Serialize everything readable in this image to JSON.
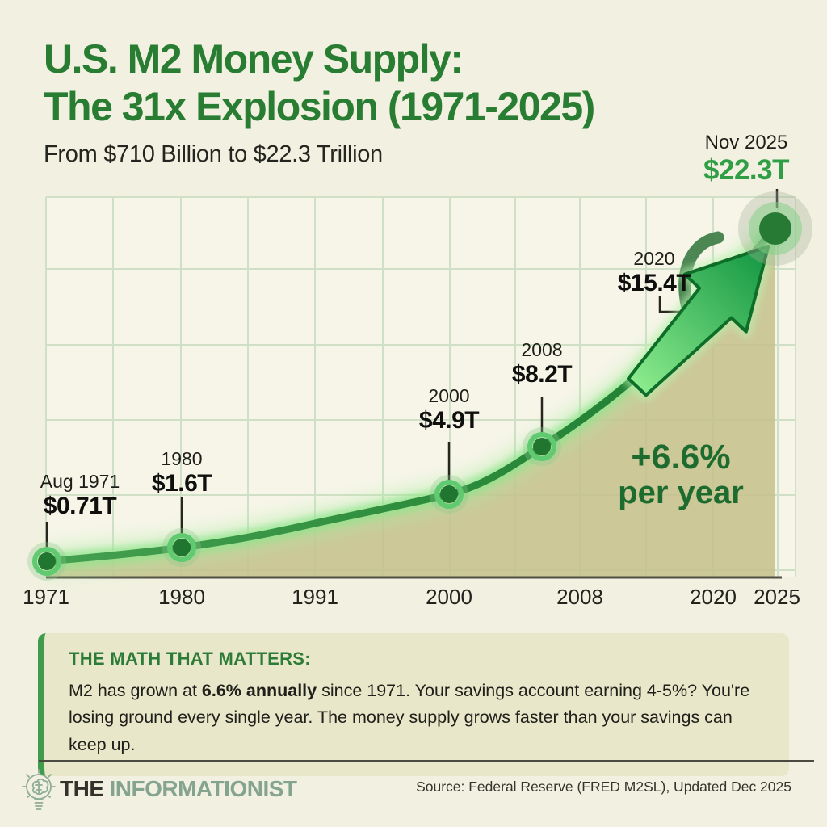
{
  "header": {
    "title_line1": "U.S. M2 Money Supply:",
    "title_line2": "The 31x Explosion (1971-2025)",
    "subtitle": "From $710 Billion to $22.3 Trillion"
  },
  "chart_data": {
    "type": "area",
    "title": "U.S. M2 Money Supply: The 31x Explosion (1971-2025)",
    "subtitle": "From $710 Billion to $22.3 Trillion",
    "unit": "USD trillions",
    "x_ticks": [
      "1971",
      "1980",
      "1991",
      "2000",
      "2008",
      "2020",
      "2025"
    ],
    "xlim": [
      1971,
      2025
    ],
    "ylim_trillions": [
      0,
      24
    ],
    "grid": true,
    "legend": false,
    "points": [
      {
        "date": "Aug 1971",
        "value": "$0.71T",
        "trillions": 0.71,
        "highlight": false
      },
      {
        "date": "1980",
        "value": "$1.6T",
        "trillions": 1.6,
        "highlight": false
      },
      {
        "date": "2000",
        "value": "$4.9T",
        "trillions": 4.9,
        "highlight": false
      },
      {
        "date": "2008",
        "value": "$8.2T",
        "trillions": 8.2,
        "highlight": false
      },
      {
        "date": "2020",
        "value": "$15.4T",
        "trillions": 15.4,
        "highlight": false
      },
      {
        "date": "Nov 2025",
        "value": "$22.3T",
        "trillions": 22.3,
        "highlight": true
      }
    ],
    "annotation": {
      "growth_line1": "+6.6%",
      "growth_line2": "per year",
      "growth_rate_percent": 6.6
    }
  },
  "callout": {
    "title": "THE MATH THAT MATTERS:",
    "body_pre": "M2 has grown at ",
    "body_bold": "6.6% annually",
    "body_post": " since 1971. Your savings account earning 4-5%? You're losing ground every single year. The money supply grows faster than your savings can keep up."
  },
  "footer": {
    "brand_the": "THE",
    "brand_name": "INFORMATIONIST",
    "source": "Source: Federal Reserve (FRED M2SL), Updated Dec 2025"
  },
  "colors": {
    "background": "#f2f1e1",
    "title_green": "#297d33",
    "accent_green": "#2f9e44",
    "line_green": "#2c8c3c",
    "glow_green": "#9fe896",
    "area_fill": "#c4bf8a",
    "grid_green": "#cfe0c6",
    "callout_bg": "#e9e7c9",
    "callout_border": "#3f9c4d",
    "text_dark": "#20201b",
    "brand_green": "#84a48f"
  }
}
